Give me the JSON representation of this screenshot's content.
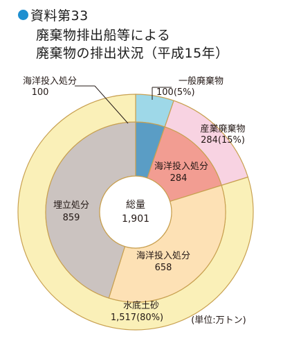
{
  "header": {
    "label": "資料第33",
    "title_line1": "廃棄物排出船等による",
    "title_line2": "廃棄物の排出状況（平成15年）"
  },
  "chart_data": {
    "type": "pie",
    "subtype": "nested-donut",
    "center": {
      "label": "総量",
      "value": "1,901",
      "total": 1901
    },
    "unit_note": "(単位:万トン)",
    "outer_ring": [
      {
        "name": "一般廃棄物",
        "value": 100,
        "label": "100(5%)",
        "color": "#9ed8e8"
      },
      {
        "name": "産業廃棄物",
        "value": 284,
        "label": "284(15%)",
        "color": "#f8d3e2"
      },
      {
        "name": "水底土砂",
        "value": 1517,
        "label": "1,517(80%)",
        "color": "#faf0b8"
      }
    ],
    "inner_ring": [
      {
        "name": "海洋投入処分",
        "value": 100,
        "label": "100",
        "color": "#5a9dc5"
      },
      {
        "name": "海洋投入処分",
        "value": 284,
        "label": "284",
        "color": "#f29d92"
      },
      {
        "name": "海洋投入処分",
        "value": 658,
        "label": "658",
        "color": "#fde1b5"
      },
      {
        "name": "埋立処分",
        "value": 859,
        "label": "859",
        "color": "#cbc3c0"
      }
    ],
    "stroke_color": "#c8a050"
  }
}
